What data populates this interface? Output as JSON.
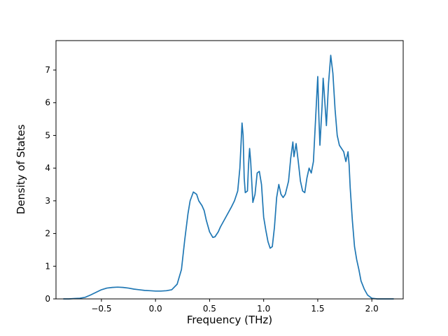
{
  "chart_data": {
    "type": "line",
    "title": "",
    "xlabel": "Frequency (THz)",
    "ylabel": "Density of States",
    "xlim": [
      -0.92,
      2.29
    ],
    "ylim": [
      0,
      7.9
    ],
    "xtick_values": [
      -0.5,
      0.0,
      0.5,
      1.0,
      1.5,
      2.0
    ],
    "xtick_labels": [
      "−0.5",
      "0.0",
      "0.5",
      "1.0",
      "1.5",
      "2.0"
    ],
    "ytick_values": [
      0,
      1,
      2,
      3,
      4,
      5,
      6,
      7
    ],
    "ytick_labels": [
      "0",
      "1",
      "2",
      "3",
      "4",
      "5",
      "6",
      "7"
    ],
    "grid": false,
    "legend": "none",
    "line_color": "#1f77b4",
    "line_width": 1.7,
    "x": [
      -0.85,
      -0.8,
      -0.75,
      -0.7,
      -0.65,
      -0.6,
      -0.55,
      -0.5,
      -0.45,
      -0.4,
      -0.35,
      -0.3,
      -0.25,
      -0.2,
      -0.15,
      -0.1,
      -0.05,
      0.0,
      0.05,
      0.1,
      0.15,
      0.2,
      0.24,
      0.27,
      0.3,
      0.32,
      0.35,
      0.38,
      0.4,
      0.43,
      0.45,
      0.47,
      0.5,
      0.53,
      0.55,
      0.58,
      0.6,
      0.65,
      0.7,
      0.73,
      0.76,
      0.78,
      0.8,
      0.81,
      0.82,
      0.83,
      0.85,
      0.86,
      0.87,
      0.88,
      0.9,
      0.92,
      0.94,
      0.96,
      0.98,
      1.0,
      1.02,
      1.04,
      1.06,
      1.08,
      1.1,
      1.12,
      1.14,
      1.16,
      1.18,
      1.2,
      1.23,
      1.25,
      1.27,
      1.28,
      1.3,
      1.32,
      1.34,
      1.36,
      1.38,
      1.4,
      1.42,
      1.44,
      1.46,
      1.48,
      1.5,
      1.51,
      1.52,
      1.54,
      1.55,
      1.56,
      1.58,
      1.6,
      1.62,
      1.64,
      1.66,
      1.68,
      1.7,
      1.72,
      1.74,
      1.76,
      1.78,
      1.79,
      1.8,
      1.82,
      1.84,
      1.86,
      1.88,
      1.9,
      1.93,
      1.96,
      2.0,
      2.05,
      2.1,
      2.2
    ],
    "y": [
      0,
      0,
      0.01,
      0.02,
      0.05,
      0.12,
      0.2,
      0.28,
      0.33,
      0.35,
      0.36,
      0.35,
      0.33,
      0.3,
      0.28,
      0.26,
      0.25,
      0.24,
      0.24,
      0.25,
      0.28,
      0.45,
      0.9,
      1.8,
      2.6,
      3.0,
      3.27,
      3.2,
      3.0,
      2.85,
      2.7,
      2.4,
      2.05,
      1.88,
      1.9,
      2.05,
      2.2,
      2.5,
      2.8,
      3.0,
      3.3,
      4.0,
      5.38,
      5.0,
      3.7,
      3.25,
      3.3,
      4.1,
      4.6,
      4.2,
      2.95,
      3.2,
      3.85,
      3.9,
      3.5,
      2.5,
      2.1,
      1.75,
      1.55,
      1.6,
      2.2,
      3.1,
      3.5,
      3.2,
      3.1,
      3.2,
      3.6,
      4.3,
      4.8,
      4.35,
      4.75,
      4.2,
      3.6,
      3.3,
      3.25,
      3.7,
      4.0,
      3.85,
      4.2,
      5.5,
      6.8,
      5.6,
      4.7,
      5.9,
      6.75,
      6.3,
      5.3,
      6.6,
      7.45,
      6.9,
      5.8,
      5.0,
      4.7,
      4.6,
      4.5,
      4.2,
      4.5,
      4.1,
      3.4,
      2.4,
      1.6,
      1.2,
      0.9,
      0.55,
      0.3,
      0.12,
      0.02,
      0.0,
      0.0,
      0.0
    ]
  },
  "colors": {
    "line": "#1f77b4",
    "axes": "#000000",
    "background": "#ffffff"
  }
}
